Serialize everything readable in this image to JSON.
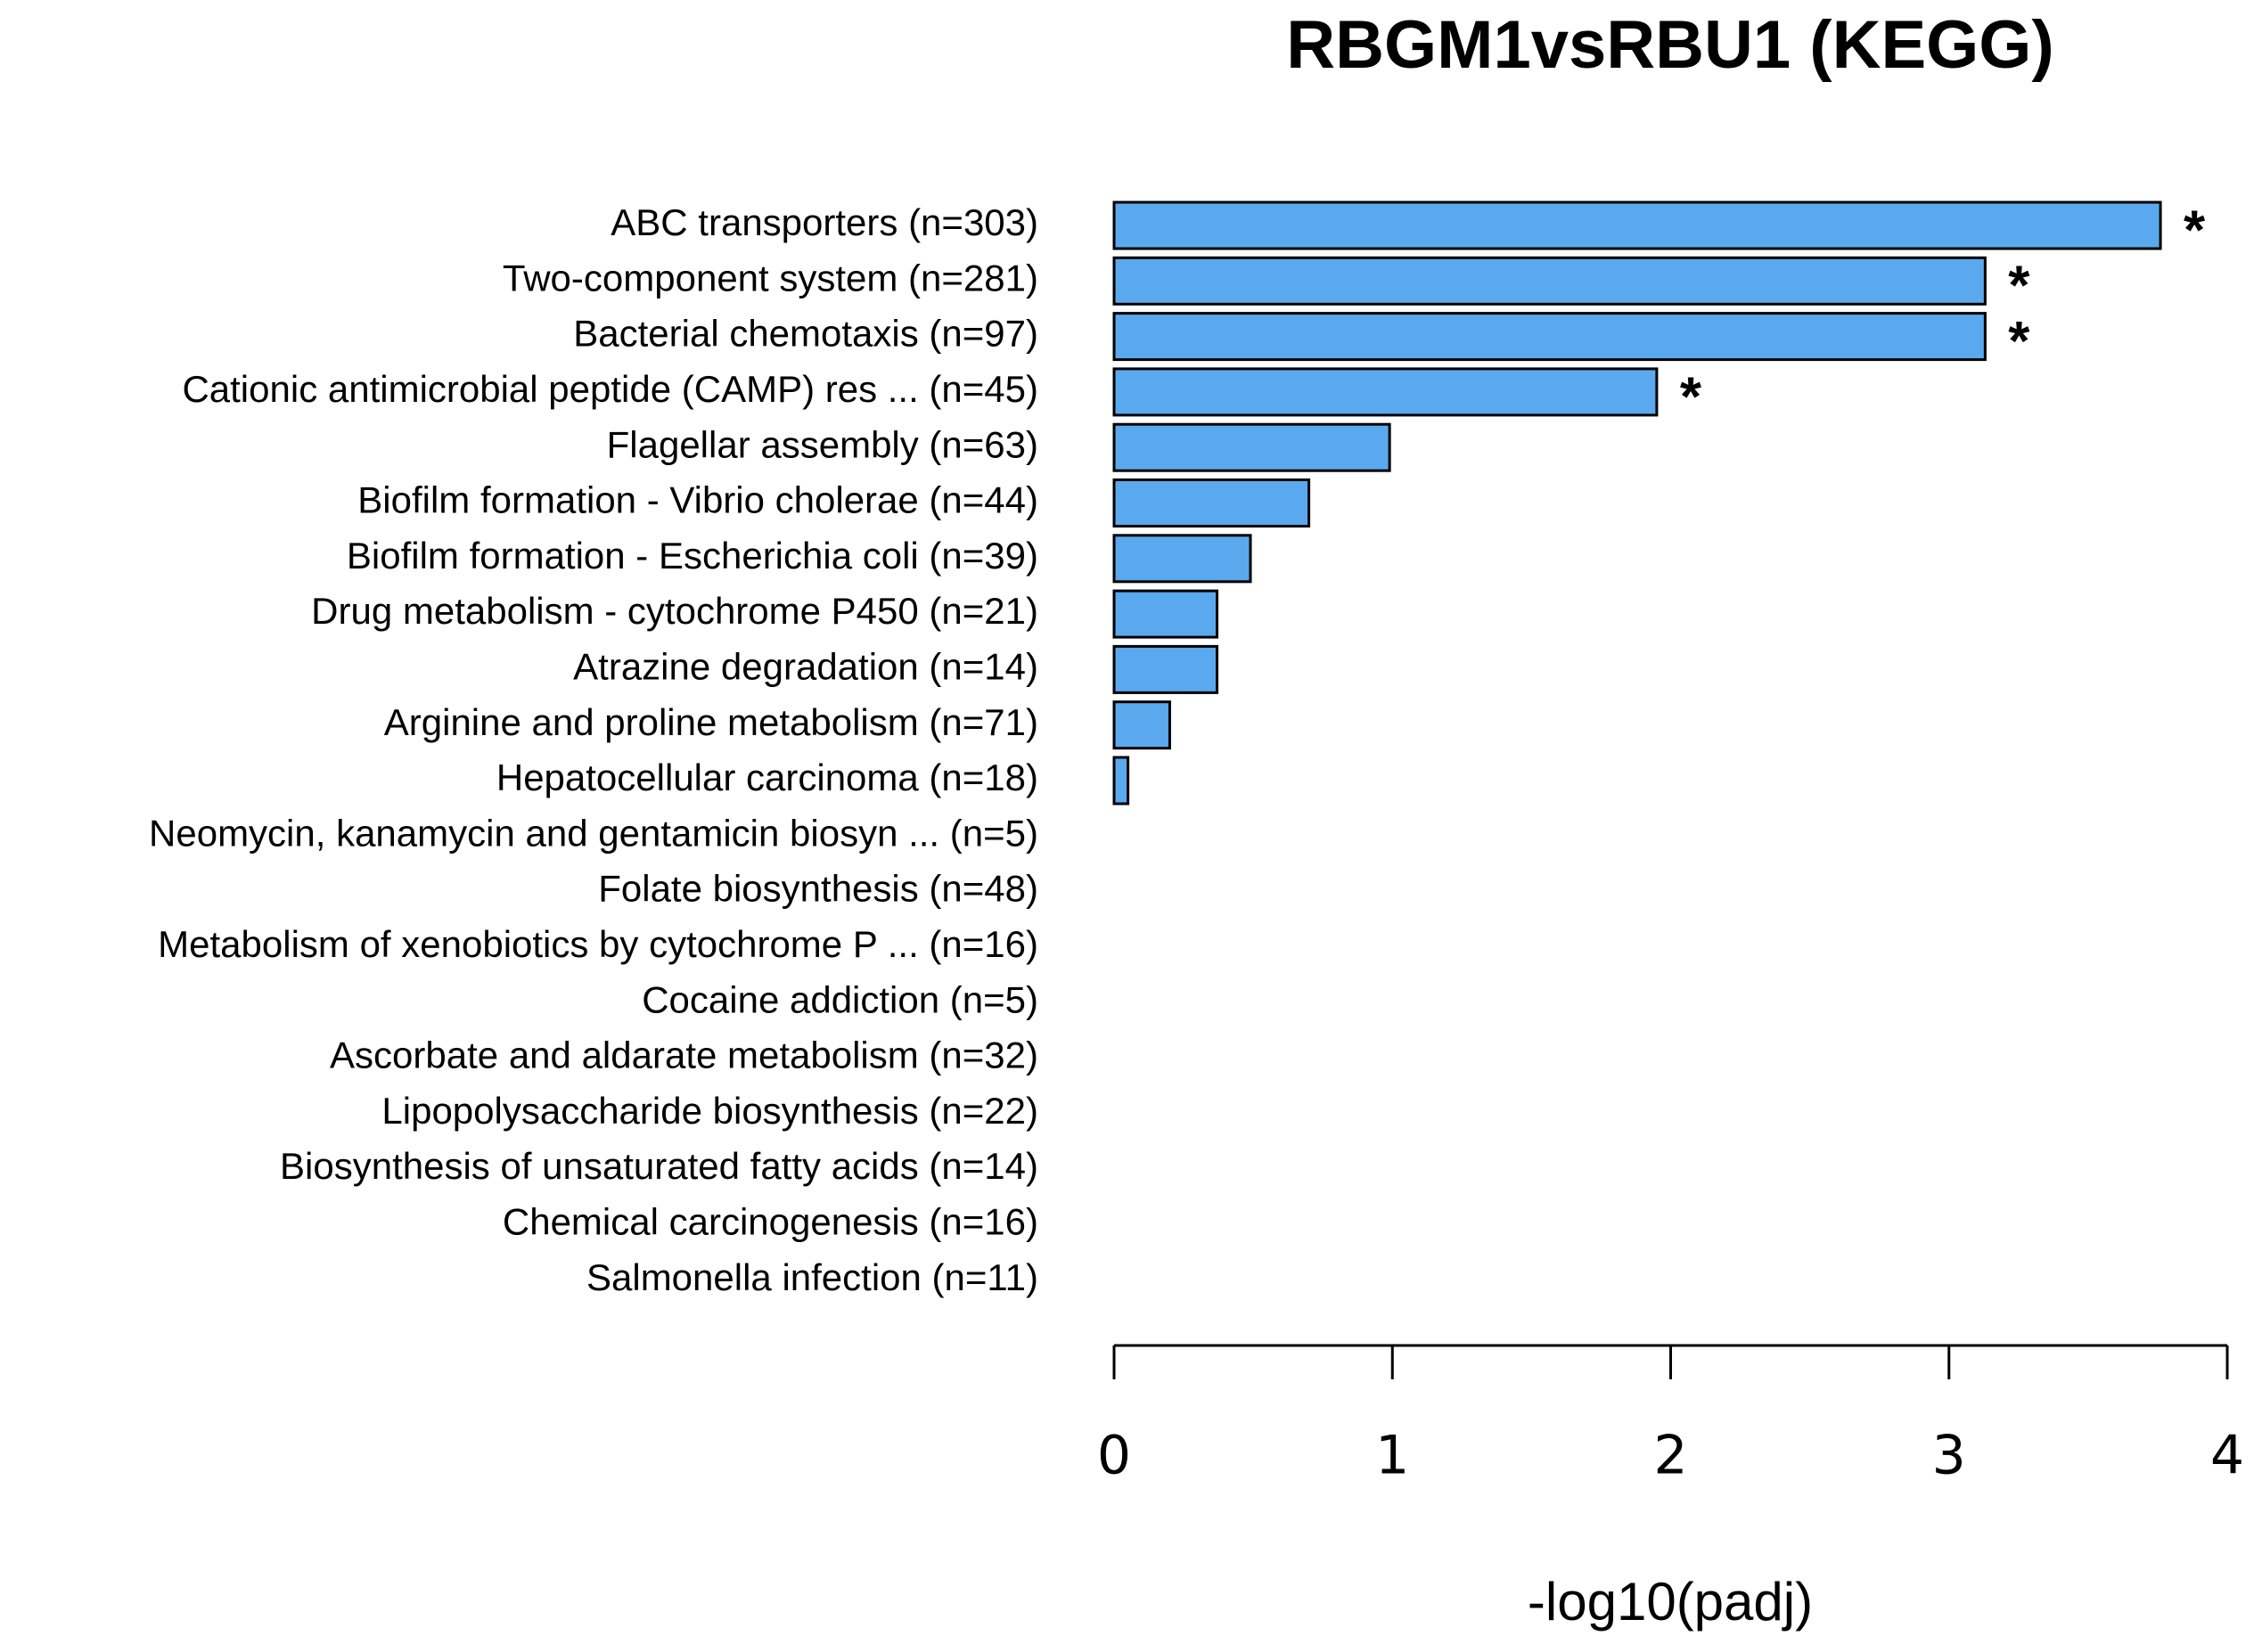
{
  "chart_data": {
    "type": "bar",
    "orientation": "horizontal",
    "title": "RBGM1vsRBU1 (KEGG)",
    "x_label": "-log10(padj)",
    "categories": [
      "ABC transporters (n=303)",
      "Two-component system (n=281)",
      "Bacterial chemotaxis (n=97)",
      "Cationic antimicrobial peptide (CAMP) res ... (n=45)",
      "Flagellar assembly (n=63)",
      "Biofilm formation - Vibrio cholerae (n=44)",
      "Biofilm formation - Escherichia coli (n=39)",
      "Drug metabolism - cytochrome P450 (n=21)",
      "Atrazine degradation (n=14)",
      "Arginine and proline metabolism (n=71)",
      "Hepatocellular carcinoma (n=18)",
      "Neomycin, kanamycin and gentamicin biosyn ... (n=5)",
      "Folate biosynthesis (n=48)",
      "Metabolism of xenobiotics by cytochrome P ... (n=16)",
      "Cocaine addiction (n=5)",
      "Ascorbate and aldarate metabolism (n=32)",
      "Lipopolysaccharide biosynthesis (n=22)",
      "Biosynthesis of unsaturated fatty acids (n=14)",
      "Chemical carcinogenesis (n=16)",
      "Salmonella infection (n=11)"
    ],
    "values": [
      3.76,
      3.13,
      3.13,
      1.95,
      0.99,
      0.7,
      0.49,
      0.37,
      0.37,
      0.2,
      0.05,
      0,
      0,
      0,
      0,
      0,
      0,
      0,
      0,
      0
    ],
    "significance": [
      "*",
      "*",
      "*",
      "*",
      null,
      null,
      null,
      null,
      null,
      null,
      null,
      null,
      null,
      null,
      null,
      null,
      null,
      null,
      null,
      null
    ],
    "color": "#5aa9ee",
    "xlim": [
      0,
      4
    ],
    "xticks": [
      0,
      1,
      2,
      3,
      4
    ]
  }
}
